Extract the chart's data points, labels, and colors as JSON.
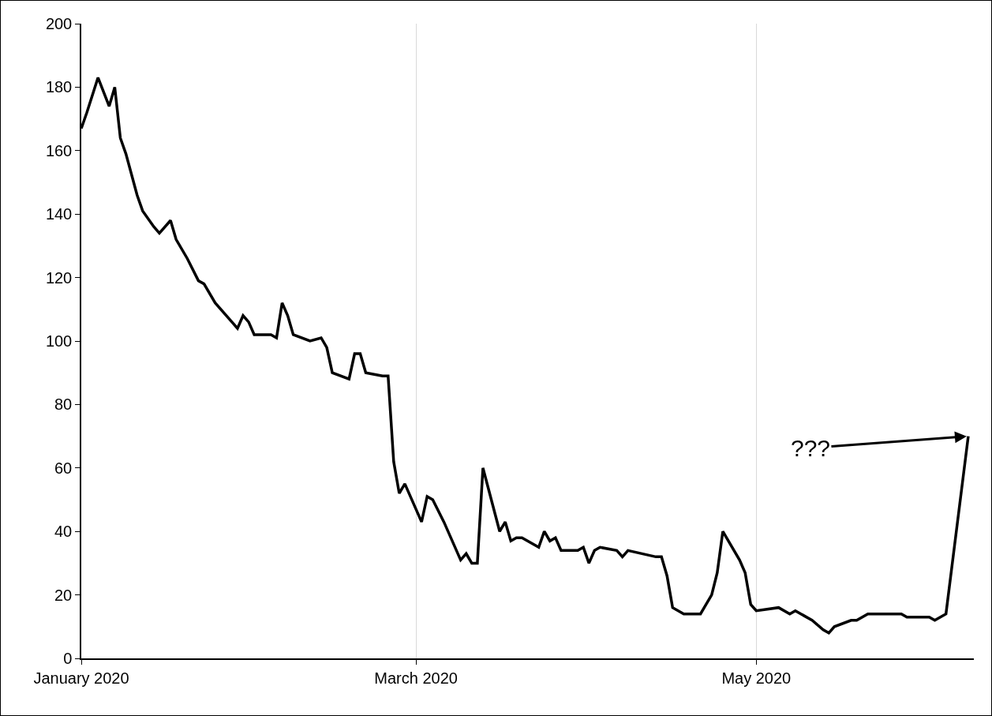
{
  "chart_data": {
    "type": "line",
    "x": [
      "2020-01-01",
      "2020-01-02",
      "2020-01-04",
      "2020-01-06",
      "2020-01-07",
      "2020-01-08",
      "2020-01-09",
      "2020-01-11",
      "2020-01-12",
      "2020-01-14",
      "2020-01-15",
      "2020-01-17",
      "2020-01-18",
      "2020-01-20",
      "2020-01-22",
      "2020-01-23",
      "2020-01-25",
      "2020-01-28",
      "2020-01-29",
      "2020-01-30",
      "2020-01-31",
      "2020-02-01",
      "2020-02-04",
      "2020-02-05",
      "2020-02-06",
      "2020-02-07",
      "2020-02-08",
      "2020-02-11",
      "2020-02-13",
      "2020-02-14",
      "2020-02-15",
      "2020-02-18",
      "2020-02-19",
      "2020-02-20",
      "2020-02-21",
      "2020-02-24",
      "2020-02-25",
      "2020-02-26",
      "2020-02-27",
      "2020-02-28",
      "2020-03-02",
      "2020-03-03",
      "2020-03-04",
      "2020-03-06",
      "2020-03-09",
      "2020-03-10",
      "2020-03-11",
      "2020-03-12",
      "2020-03-13",
      "2020-03-16",
      "2020-03-17",
      "2020-03-18",
      "2020-03-19",
      "2020-03-20",
      "2020-03-23",
      "2020-03-24",
      "2020-03-25",
      "2020-03-26",
      "2020-03-27",
      "2020-03-30",
      "2020-03-31",
      "2020-04-01",
      "2020-04-02",
      "2020-04-03",
      "2020-04-06",
      "2020-04-07",
      "2020-04-08",
      "2020-04-13",
      "2020-04-14",
      "2020-04-15",
      "2020-04-16",
      "2020-04-18",
      "2020-04-21",
      "2020-04-22",
      "2020-04-23",
      "2020-04-24",
      "2020-04-25",
      "2020-04-28",
      "2020-04-29",
      "2020-04-30",
      "2020-05-01",
      "2020-05-05",
      "2020-05-07",
      "2020-05-08",
      "2020-05-11",
      "2020-05-13",
      "2020-05-14",
      "2020-05-15",
      "2020-05-18",
      "2020-05-19",
      "2020-05-21",
      "2020-05-27",
      "2020-05-28",
      "2020-06-01",
      "2020-06-02",
      "2020-06-04",
      "2020-06-08"
    ],
    "series": [
      {
        "color": "#000000",
        "values": [
          167,
          172,
          183,
          174,
          180,
          164,
          159,
          146,
          141,
          136,
          134,
          138,
          132,
          126,
          119,
          118,
          112,
          106,
          104,
          108,
          106,
          102,
          102,
          101,
          112,
          108,
          102,
          100,
          101,
          98,
          90,
          88,
          96,
          96,
          90,
          89,
          89,
          62,
          52,
          55,
          43,
          51,
          50,
          43,
          31,
          33,
          30,
          30,
          60,
          40,
          43,
          37,
          38,
          38,
          35,
          40,
          37,
          38,
          34,
          34,
          35,
          30,
          34,
          35,
          34,
          32,
          34,
          32,
          32,
          26,
          16,
          14,
          14,
          17,
          20,
          27,
          40,
          31,
          27,
          17,
          15,
          16,
          14,
          15,
          12,
          9,
          8,
          10,
          12,
          12,
          14,
          14,
          13,
          13,
          12,
          14,
          70
        ]
      }
    ],
    "xlim": [
      "2020-01-01",
      "2020-06-09"
    ],
    "xticks": [
      {
        "value": "2020-01-01",
        "label": "January 2020"
      },
      {
        "value": "2020-03-01",
        "label": "March 2020"
      },
      {
        "value": "2020-05-01",
        "label": "May 2020"
      }
    ],
    "ylim": [
      0,
      200
    ],
    "yticks": [
      0,
      20,
      40,
      60,
      80,
      100,
      120,
      140,
      160,
      180,
      200
    ],
    "grid": "x",
    "marker": "none",
    "line_style": "solid",
    "annotations": [
      {
        "text": "???",
        "x": "2020-06-08",
        "y": 70
      }
    ]
  }
}
